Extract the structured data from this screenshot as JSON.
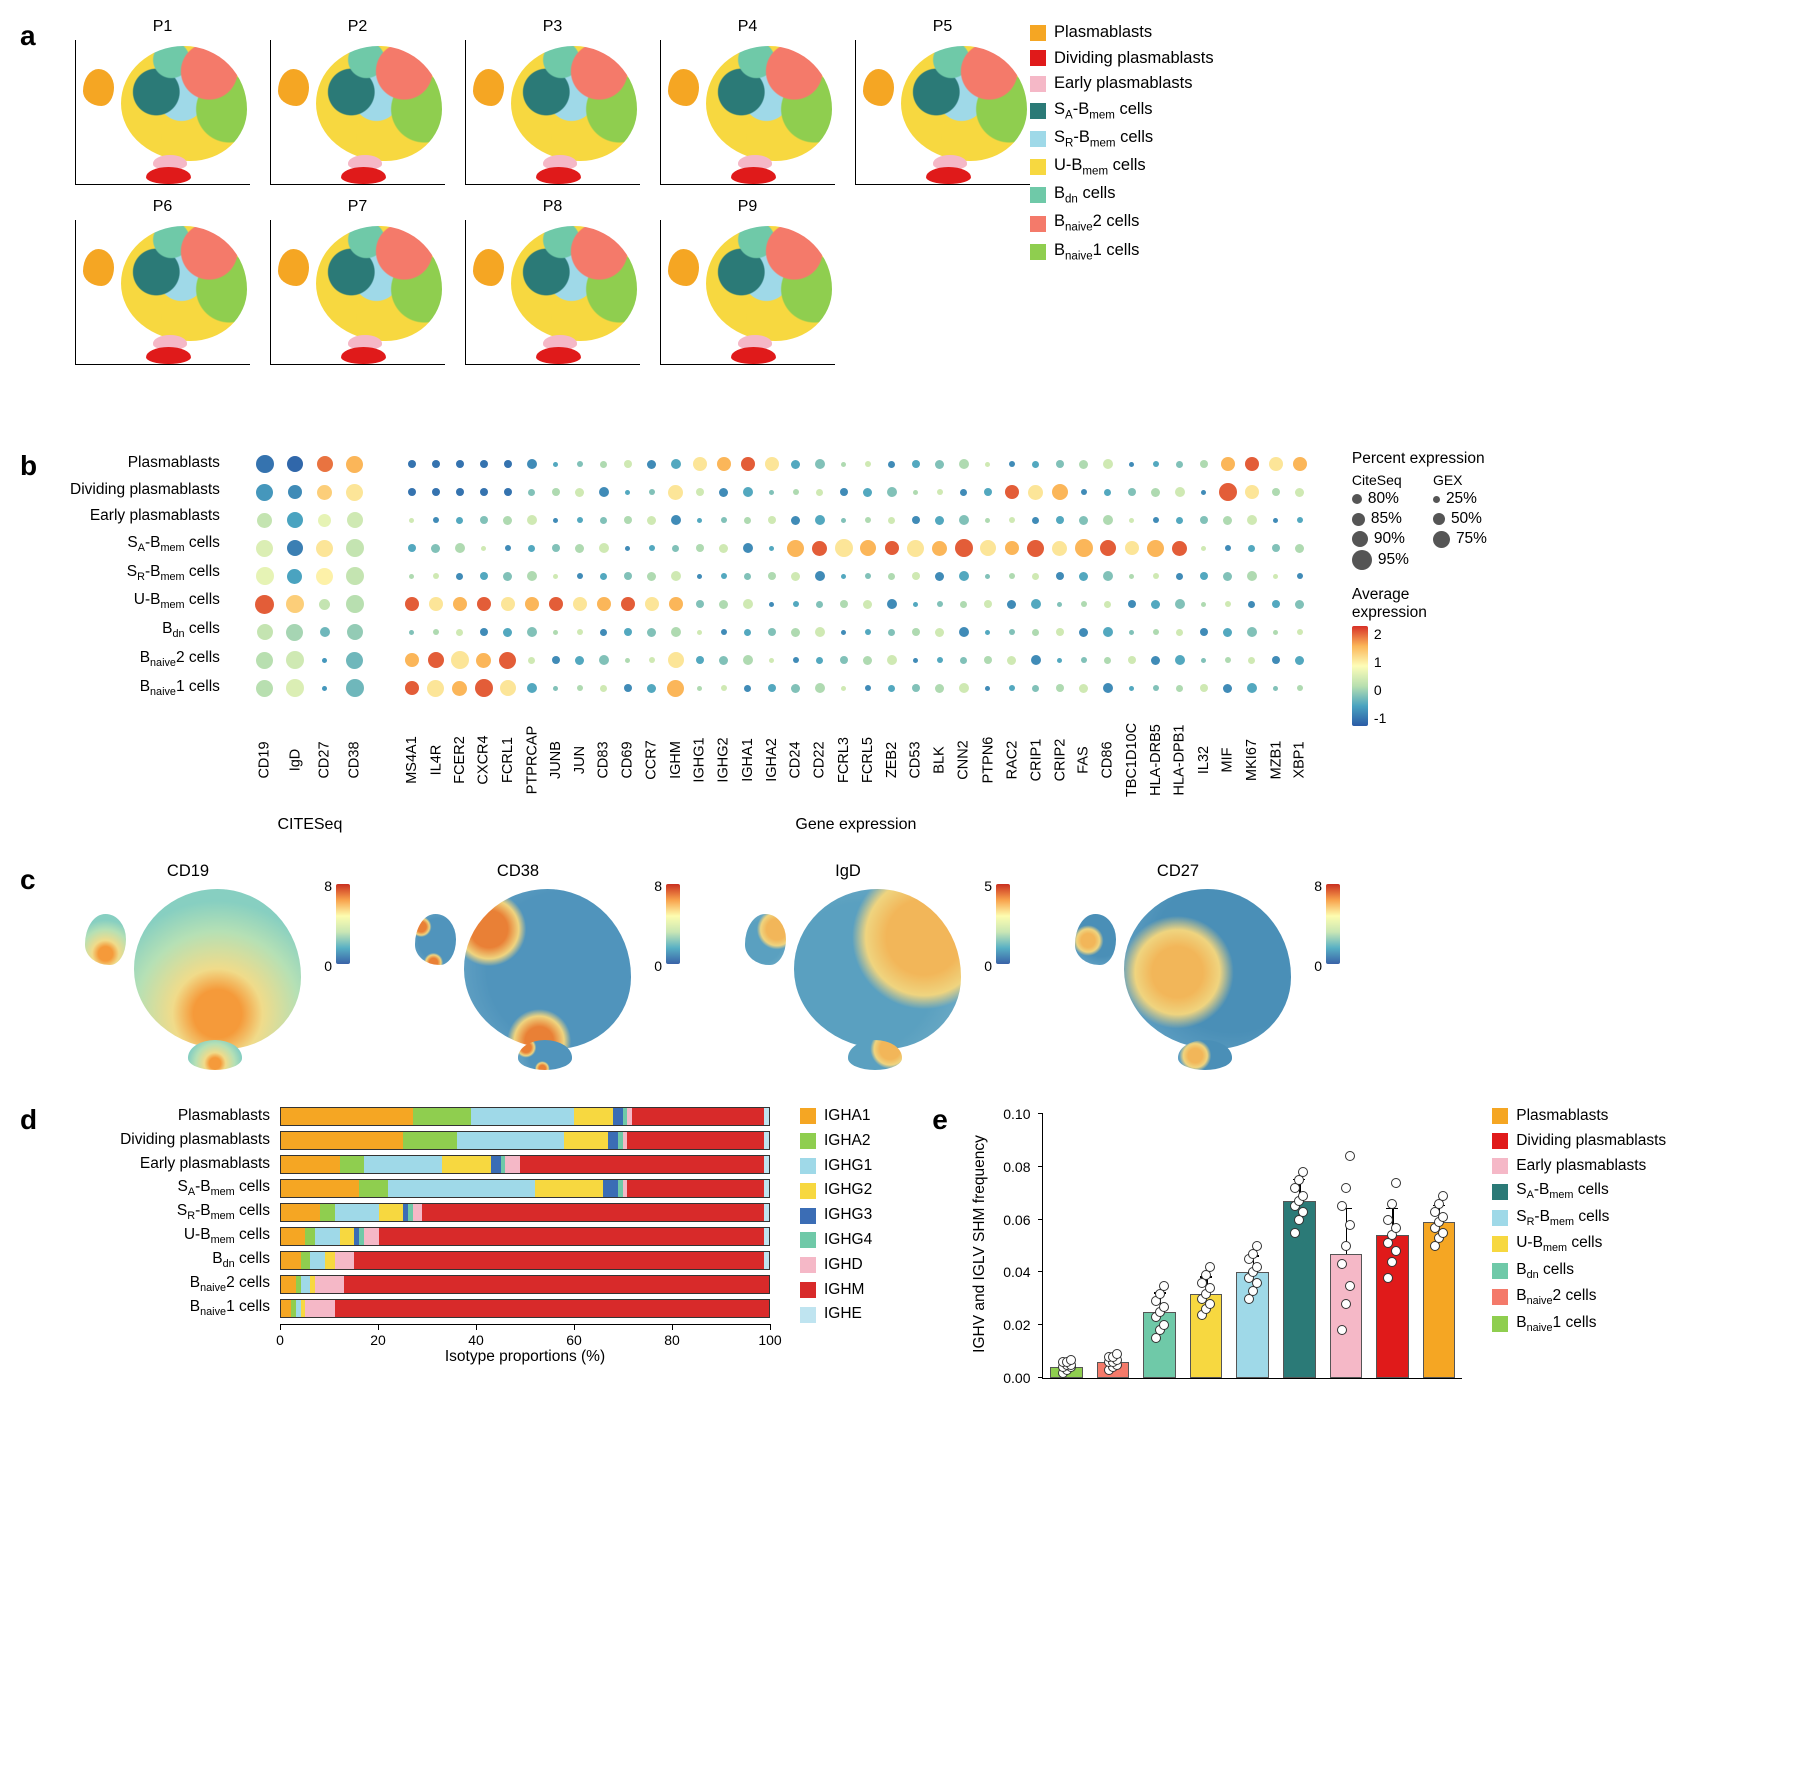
{
  "colors": {
    "plasmablasts": "#f5a623",
    "dividing": "#e01a1a",
    "early": "#f5b8c7",
    "sa_bmem": "#2b7a77",
    "sr_bmem": "#9fd9e8",
    "u_bmem": "#f7d840",
    "bdn": "#6fc9a8",
    "bnaive2": "#f47a6a",
    "bnaive1": "#8fce4f",
    "expr_colormap": "linear-gradient(to top, #2b5ba6, #4aa3c0, #b8dfb0, #fdfdb8, #fbb659, #d73027)",
    "feat_colormap": "linear-gradient(to top, #3a63a8, #58b0c4, #c9e6b4, #fdfdb0, #f8a24c, #c92f20)",
    "isotype": {
      "IGHA1": "#f5a623",
      "IGHA2": "#8fce4f",
      "IGHG1": "#9fd9e8",
      "IGHG2": "#f7d840",
      "IGHG3": "#3b6db5",
      "IGHG4": "#6fc9a8",
      "IGHD": "#f5b8c7",
      "IGHM": "#d82a2a",
      "IGHE": "#bfe4f0"
    }
  },
  "panel_a": {
    "label": "a",
    "titles": [
      "P1",
      "P2",
      "P3",
      "P4",
      "P5",
      "P6",
      "P7",
      "P8",
      "P9"
    ],
    "legend": [
      {
        "label": "Plasmablasts",
        "html": "Plasmablasts",
        "color": "plasmablasts"
      },
      {
        "label": "Dividing plasmablasts",
        "html": "Dividing plasmablasts",
        "color": "dividing"
      },
      {
        "label": "Early plasmablasts",
        "html": "Early plasmablasts",
        "color": "early"
      },
      {
        "label": "SA-Bmem cells",
        "html": "S<sub>A</sub>-B<sub>mem</sub> cells",
        "color": "sa_bmem"
      },
      {
        "label": "SR-Bmem cells",
        "html": "S<sub>R</sub>-B<sub>mem</sub> cells",
        "color": "sr_bmem"
      },
      {
        "label": "U-Bmem cells",
        "html": "U-B<sub>mem</sub> cells",
        "color": "u_bmem"
      },
      {
        "label": "Bdn cells",
        "html": "B<sub>dn</sub> cells",
        "color": "bdn"
      },
      {
        "label": "Bnaive2 cells",
        "html": "B<sub>naive</sub>2 cells",
        "color": "bnaive2"
      },
      {
        "label": "Bnaive1 cells",
        "html": "B<sub>naive</sub>1 cells",
        "color": "bnaive1"
      }
    ]
  },
  "panel_b": {
    "label": "b",
    "row_labels_html": [
      "Plasmablasts",
      "Dividing plasmablasts",
      "Early plasmablasts",
      "S<sub>A</sub>-B<sub>mem</sub> cells",
      "S<sub>R</sub>-B<sub>mem</sub> cells",
      "U-B<sub>mem</sub> cells",
      "B<sub>dn</sub> cells",
      "B<sub>naive</sub>2 cells",
      "B<sub>naive</sub>1 cells"
    ],
    "citeseq_cols": [
      "CD19",
      "IgD",
      "CD27",
      "CD38"
    ],
    "citeseq": [
      [
        {
          "s": 18,
          "e": -0.8
        },
        {
          "s": 16,
          "e": -0.9
        },
        {
          "s": 16,
          "e": 1.7
        },
        {
          "s": 17,
          "e": 1.4
        }
      ],
      [
        {
          "s": 17,
          "e": -0.5
        },
        {
          "s": 14,
          "e": -0.6
        },
        {
          "s": 15,
          "e": 1.2
        },
        {
          "s": 17,
          "e": 1.0
        }
      ],
      [
        {
          "s": 15,
          "e": 0.3
        },
        {
          "s": 16,
          "e": -0.4
        },
        {
          "s": 13,
          "e": 0.6
        },
        {
          "s": 16,
          "e": 0.4
        }
      ],
      [
        {
          "s": 17,
          "e": 0.5
        },
        {
          "s": 16,
          "e": -0.7
        },
        {
          "s": 17,
          "e": 1.0
        },
        {
          "s": 18,
          "e": 0.3
        }
      ],
      [
        {
          "s": 18,
          "e": 0.6
        },
        {
          "s": 15,
          "e": -0.4
        },
        {
          "s": 17,
          "e": 0.9
        },
        {
          "s": 18,
          "e": 0.3
        }
      ],
      [
        {
          "s": 19,
          "e": 1.8
        },
        {
          "s": 18,
          "e": 1.2
        },
        {
          "s": 11,
          "e": 0.3
        },
        {
          "s": 18,
          "e": 0.2
        }
      ],
      [
        {
          "s": 16,
          "e": 0.3
        },
        {
          "s": 17,
          "e": 0.1
        },
        {
          "s": 10,
          "e": -0.2
        },
        {
          "s": 16,
          "e": 0.0
        }
      ],
      [
        {
          "s": 17,
          "e": 0.2
        },
        {
          "s": 18,
          "e": 0.4
        },
        {
          "s": 5,
          "e": -0.5
        },
        {
          "s": 17,
          "e": -0.2
        }
      ],
      [
        {
          "s": 17,
          "e": 0.2
        },
        {
          "s": 18,
          "e": 0.5
        },
        {
          "s": 5,
          "e": -0.5
        },
        {
          "s": 18,
          "e": -0.2
        }
      ]
    ],
    "gex_cols": [
      "MS4A1",
      "IL4R",
      "FCER2",
      "CXCR4",
      "FCRL1",
      "PTPRCAP",
      "JUNB",
      "JUN",
      "CD83",
      "CD69",
      "CCR7",
      "IGHM",
      "IGHG1",
      "IGHG2",
      "IGHA1",
      "IGHA2",
      "CD24",
      "CD22",
      "FCRL3",
      "FCRL5",
      "ZEB2",
      "CD53",
      "BLK",
      "CNN2",
      "PTPN6",
      "RAC2",
      "CRIP1",
      "CRIP2",
      "FAS",
      "CD86",
      "TBC1D10C",
      "HLA-DRB5",
      "HLA-DPB1",
      "IL32",
      "MIF",
      "MKI67",
      "MZB1",
      "XBP1"
    ],
    "gex_rows_demo": true,
    "sublabels": {
      "left": "CITESeq",
      "right": "Gene expression"
    },
    "size_legend": {
      "title": "Percent expression",
      "headers": [
        "CiteSeq",
        "GEX"
      ],
      "citeseq_levels": [
        {
          "label": "80%",
          "d": 10
        },
        {
          "label": "85%",
          "d": 13
        },
        {
          "label": "90%",
          "d": 16
        },
        {
          "label": "95%",
          "d": 20
        }
      ],
      "gex_levels": [
        {
          "label": "25%",
          "d": 7
        },
        {
          "label": "50%",
          "d": 12
        },
        {
          "label": "75%",
          "d": 17
        }
      ]
    },
    "expr_legend": {
      "title": "Average\nexpression",
      "ticks": [
        "2",
        "1",
        "0",
        "-1"
      ]
    }
  },
  "panel_c": {
    "label": "c",
    "features": [
      {
        "name": "CD19",
        "max": 8
      },
      {
        "name": "CD38",
        "max": 8
      },
      {
        "name": "IgD",
        "max": 5
      },
      {
        "name": "CD27",
        "max": 8
      }
    ]
  },
  "panel_d": {
    "label": "d",
    "row_labels_html": [
      "Plasmablasts",
      "Dividing plasmablasts",
      "Early plasmablasts",
      "S<sub>A</sub>-B<sub>mem</sub> cells",
      "S<sub>R</sub>-B<sub>mem</sub> cells",
      "U-B<sub>mem</sub> cells",
      "B<sub>dn</sub> cells",
      "B<sub>naive</sub>2 cells",
      "B<sub>naive</sub>1 cells"
    ],
    "isotype_order": [
      "IGHA1",
      "IGHA2",
      "IGHG1",
      "IGHG2",
      "IGHG3",
      "IGHG4",
      "IGHD",
      "IGHM",
      "IGHE"
    ],
    "data": [
      [
        27,
        12,
        21,
        8,
        2,
        1,
        1,
        27,
        1
      ],
      [
        25,
        11,
        22,
        9,
        2,
        1,
        1,
        28,
        1
      ],
      [
        12,
        5,
        16,
        10,
        2,
        1,
        3,
        50,
        1
      ],
      [
        16,
        6,
        30,
        14,
        3,
        1,
        1,
        28,
        1
      ],
      [
        8,
        3,
        9,
        5,
        1,
        1,
        2,
        70,
        1
      ],
      [
        5,
        2,
        5,
        3,
        1,
        1,
        3,
        79,
        1
      ],
      [
        4,
        2,
        3,
        2,
        0,
        0,
        4,
        84,
        1
      ],
      [
        3,
        1,
        2,
        1,
        0,
        0,
        6,
        87,
        0
      ],
      [
        2,
        1,
        1,
        1,
        0,
        0,
        6,
        89,
        0
      ]
    ],
    "axis": {
      "label": "Isotype proportions (%)",
      "ticks": [
        0,
        20,
        40,
        60,
        80,
        100
      ]
    }
  },
  "panel_e": {
    "label": "e",
    "ylabel": "IGHV and IGLV SHM frequency",
    "ylim": [
      0,
      0.1
    ],
    "yticks": [
      0,
      0.02,
      0.04,
      0.06,
      0.08,
      0.1
    ],
    "bars": [
      {
        "key": "bnaive1",
        "mean": 0.004,
        "err": 0.002,
        "pts": [
          0.002,
          0.003,
          0.004,
          0.004,
          0.005,
          0.005,
          0.006,
          0.006,
          0.007
        ]
      },
      {
        "key": "bnaive2",
        "mean": 0.006,
        "err": 0.002,
        "pts": [
          0.003,
          0.004,
          0.005,
          0.006,
          0.006,
          0.007,
          0.008,
          0.008,
          0.009
        ]
      },
      {
        "key": "bdn",
        "mean": 0.025,
        "err": 0.007,
        "pts": [
          0.015,
          0.018,
          0.02,
          0.023,
          0.025,
          0.027,
          0.029,
          0.032,
          0.035
        ]
      },
      {
        "key": "u_bmem",
        "mean": 0.032,
        "err": 0.006,
        "pts": [
          0.024,
          0.026,
          0.028,
          0.03,
          0.032,
          0.034,
          0.036,
          0.039,
          0.042
        ]
      },
      {
        "key": "sr_bmem",
        "mean": 0.04,
        "err": 0.006,
        "pts": [
          0.03,
          0.033,
          0.036,
          0.038,
          0.04,
          0.042,
          0.045,
          0.047,
          0.05
        ]
      },
      {
        "key": "sa_bmem",
        "mean": 0.067,
        "err": 0.008,
        "pts": [
          0.055,
          0.06,
          0.063,
          0.065,
          0.067,
          0.069,
          0.072,
          0.075,
          0.078
        ]
      },
      {
        "key": "early",
        "mean": 0.047,
        "err": 0.017,
        "pts": [
          0.018,
          0.028,
          0.035,
          0.043,
          0.05,
          0.058,
          0.065,
          0.072,
          0.084
        ]
      },
      {
        "key": "dividing",
        "mean": 0.054,
        "err": 0.01,
        "pts": [
          0.038,
          0.044,
          0.048,
          0.051,
          0.054,
          0.057,
          0.06,
          0.066,
          0.074
        ]
      },
      {
        "key": "plasmablasts",
        "mean": 0.059,
        "err": 0.006,
        "pts": [
          0.05,
          0.053,
          0.055,
          0.057,
          0.059,
          0.061,
          0.063,
          0.066,
          0.069
        ]
      }
    ],
    "legend": [
      {
        "html": "Plasmablasts",
        "color": "plasmablasts"
      },
      {
        "html": "Dividing plasmablasts",
        "color": "dividing"
      },
      {
        "html": "Early plasmablasts",
        "color": "early"
      },
      {
        "html": "S<sub>A</sub>-B<sub>mem</sub> cells",
        "color": "sa_bmem"
      },
      {
        "html": "S<sub>R</sub>-B<sub>mem</sub> cells",
        "color": "sr_bmem"
      },
      {
        "html": "U-B<sub>mem</sub> cells",
        "color": "u_bmem"
      },
      {
        "html": "B<sub>dn</sub> cells",
        "color": "bdn"
      },
      {
        "html": "B<sub>naive</sub>2 cells",
        "color": "bnaive2"
      },
      {
        "html": "B<sub>naive</sub>1 cells",
        "color": "bnaive1"
      }
    ]
  }
}
